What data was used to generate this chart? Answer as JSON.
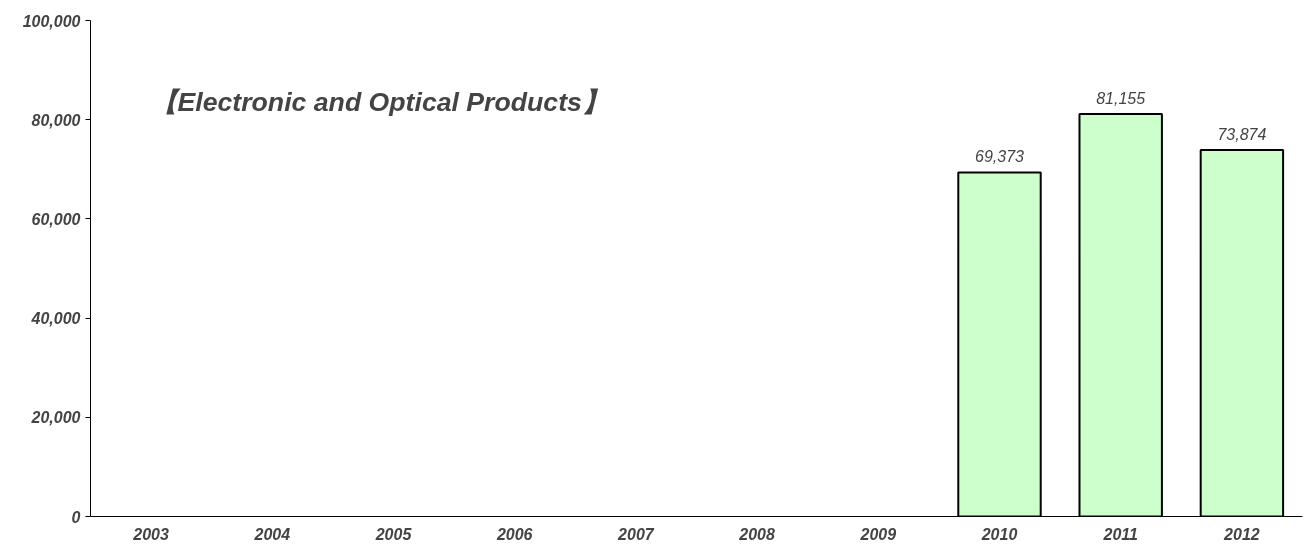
{
  "chart_data": {
    "type": "bar",
    "title": "【Electronic and Optical Products】",
    "categories": [
      "2003",
      "2004",
      "2005",
      "2006",
      "2007",
      "2008",
      "2009",
      "2010",
      "2011",
      "2012"
    ],
    "values": [
      null,
      null,
      null,
      null,
      null,
      null,
      null,
      69373,
      81155,
      73874
    ],
    "color": "#ccffcc",
    "ylim": [
      0,
      100000
    ],
    "yticks": [
      {
        "value": 0,
        "label": "0"
      },
      {
        "value": 20000,
        "label": "20,000"
      },
      {
        "value": 40000,
        "label": "40,000"
      },
      {
        "value": 60000,
        "label": "60,000"
      },
      {
        "value": 80000,
        "label": "80,000"
      },
      {
        "value": 100000,
        "label": "100,000"
      }
    ],
    "value_labels": [
      null,
      null,
      null,
      null,
      null,
      null,
      null,
      "69,373",
      "81,155",
      "73,874"
    ],
    "grid": false
  }
}
